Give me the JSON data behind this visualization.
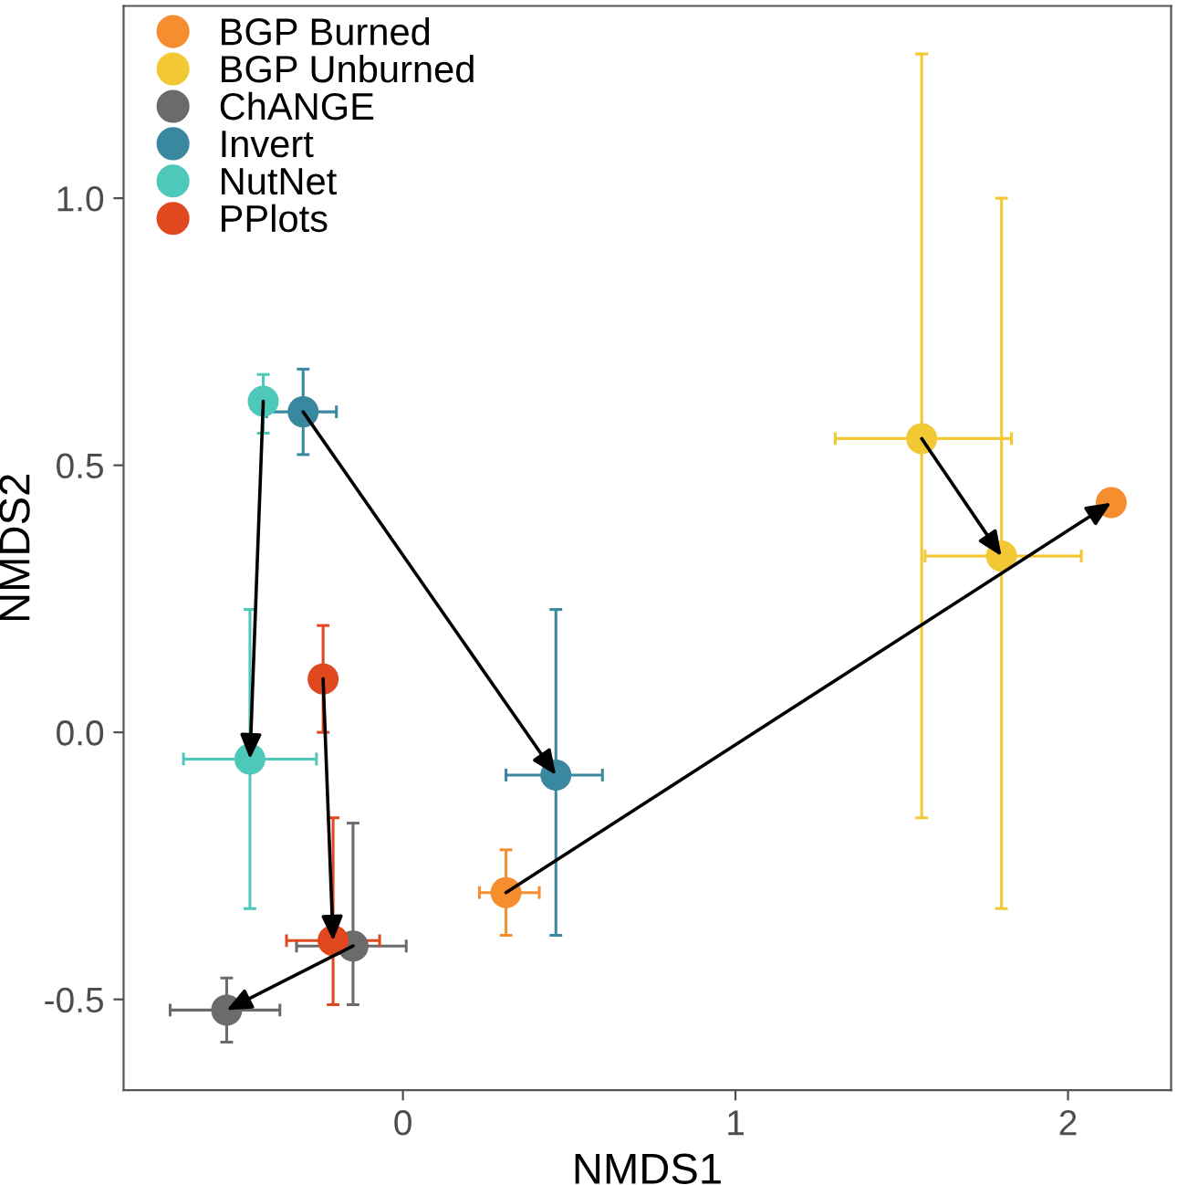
{
  "chart_data": {
    "type": "line",
    "xlabel": "NMDS1",
    "ylabel": "NMDS2",
    "xlim": [
      -0.84,
      2.31
    ],
    "ylim": [
      -0.67,
      1.36
    ],
    "xticks": [
      0,
      1,
      2
    ],
    "yticks": [
      {
        "value": -0.5,
        "label": "-0.5"
      },
      {
        "value": 0,
        "label": "0.0"
      },
      {
        "value": 0.5,
        "label": "0.5"
      },
      {
        "value": 1,
        "label": "1.0"
      }
    ],
    "grid": false,
    "legend": "top left",
    "marker": "circle",
    "line_style": "solid",
    "series": [
      {
        "name": "BGP Burned",
        "color": "#f68d2e",
        "x": [
          0.31,
          2.13
        ],
        "values": [
          -0.3,
          0.43
        ],
        "errors": [
          [
            -0.38,
            -0.22
          ],
          null
        ],
        "xerrors": [
          [
            0.23,
            0.41
          ],
          null
        ]
      },
      {
        "name": "BGP Unburned",
        "color": "#f2c935",
        "x": [
          1.56,
          1.8
        ],
        "values": [
          0.55,
          0.33
        ],
        "errors": [
          [
            -0.16,
            1.27
          ],
          [
            -0.33,
            1.0
          ]
        ],
        "xerrors": [
          [
            1.3,
            1.83
          ],
          [
            1.57,
            2.04
          ]
        ]
      },
      {
        "name": "ChANGE",
        "color": "#6b6b6b",
        "x": [
          -0.15,
          -0.53
        ],
        "values": [
          -0.4,
          -0.52
        ],
        "errors": [
          [
            -0.51,
            -0.17
          ],
          [
            -0.58,
            -0.46
          ]
        ],
        "xerrors": [
          [
            -0.32,
            0.01
          ],
          [
            -0.7,
            -0.37
          ]
        ]
      },
      {
        "name": "Invert",
        "color": "#3a87a0",
        "x": [
          -0.3,
          0.46
        ],
        "values": [
          0.6,
          -0.08
        ],
        "errors": [
          [
            0.52,
            0.68
          ],
          [
            -0.38,
            0.23
          ]
        ],
        "xerrors": [
          [
            -0.41,
            -0.2
          ],
          [
            0.31,
            0.6
          ]
        ]
      },
      {
        "name": "NutNet",
        "color": "#4ec8b9",
        "x": [
          -0.42,
          -0.46
        ],
        "values": [
          0.62,
          -0.05
        ],
        "errors": [
          [
            0.56,
            0.67
          ],
          [
            -0.33,
            0.23
          ]
        ],
        "xerrors": [
          null,
          [
            -0.66,
            -0.26
          ]
        ]
      },
      {
        "name": "PPlots",
        "color": "#e0481f",
        "x": [
          -0.24,
          -0.21
        ],
        "values": [
          0.1,
          -0.39
        ],
        "errors": [
          [
            0.0,
            0.2
          ],
          [
            -0.51,
            -0.16
          ]
        ],
        "xerrors": [
          null,
          [
            -0.35,
            -0.07
          ]
        ]
      }
    ]
  }
}
